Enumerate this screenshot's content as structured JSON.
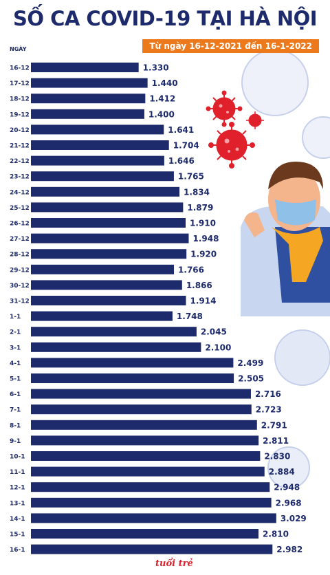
{
  "header": {
    "title": "SỐ CA COVID-19 TẠI HÀ NỘI",
    "subtitle": "Từ ngày 16-12-2021 đến 16-1-2022"
  },
  "logo": {
    "text": "tuổi trẻ"
  },
  "colors": {
    "bar": "#1d2a6b",
    "accent": "#ec7a1c",
    "virus": "#e0202a",
    "virus_light": "#c9d3ee"
  },
  "chart_data": {
    "type": "bar",
    "orientation": "horizontal",
    "ylabel": "NGÀY",
    "categories": [
      "16-12",
      "17-12",
      "18-12",
      "19-12",
      "20-12",
      "21-12",
      "22-12",
      "23-12",
      "24-12",
      "25-12",
      "26-12",
      "27-12",
      "28-12",
      "29-12",
      "30-12",
      "31-12",
      "1-1",
      "2-1",
      "3-1",
      "4-1",
      "5-1",
      "6-1",
      "7-1",
      "8-1",
      "9-1",
      "10-1",
      "11-1",
      "12-1",
      "13-1",
      "14-1",
      "15-1",
      "16-1"
    ],
    "values": [
      1330,
      1440,
      1412,
      1400,
      1641,
      1704,
      1646,
      1765,
      1834,
      1879,
      1910,
      1948,
      1920,
      1766,
      1866,
      1914,
      1748,
      2045,
      2100,
      2499,
      2505,
      2716,
      2723,
      2791,
      2811,
      2830,
      2884,
      2948,
      2968,
      3029,
      2810,
      2982
    ],
    "value_labels": [
      "1.330",
      "1.440",
      "1.412",
      "1.400",
      "1.641",
      "1.704",
      "1.646",
      "1.765",
      "1.834",
      "1.879",
      "1.910",
      "1.948",
      "1.920",
      "1.766",
      "1.866",
      "1.914",
      "1.748",
      "2.045",
      "2.100",
      "2.499",
      "2.505",
      "2.716",
      "2.723",
      "2.791",
      "2.811",
      "2.830",
      "2.884",
      "2.948",
      "2.968",
      "3.029",
      "2.810",
      "2.982"
    ],
    "xlim": [
      0,
      3100
    ],
    "grid": false,
    "legend": "none"
  }
}
